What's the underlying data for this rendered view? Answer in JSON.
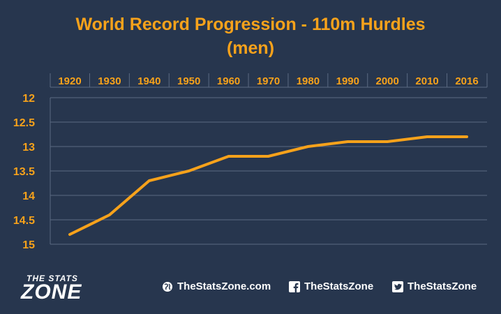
{
  "title_line1": "World Record Progression - 110m Hurdles",
  "title_line2": "(men)",
  "colors": {
    "background": "#27364e",
    "accent": "#f7a21b",
    "grid": "#5b6a82",
    "text": "#ffffff"
  },
  "chart_data": {
    "type": "line",
    "title": "World Record Progression - 110m Hurdles (men)",
    "x_axis_position": "top",
    "y_axis_reversed": true,
    "grid": true,
    "categories": [
      "1920",
      "1930",
      "1940",
      "1950",
      "1960",
      "1970",
      "1980",
      "1990",
      "2000",
      "2010",
      "2016"
    ],
    "series": [
      {
        "values": [
          14.8,
          14.4,
          13.7,
          13.5,
          13.2,
          13.2,
          13.0,
          12.9,
          12.9,
          12.8,
          12.8
        ]
      }
    ],
    "y_ticks": [
      "12",
      "12.5",
      "13",
      "13.5",
      "14",
      "14.5",
      "15"
    ],
    "ylim": [
      12,
      15
    ]
  },
  "footer": {
    "logo_top": "THE STATS",
    "logo_bottom": "ZONE",
    "website": "TheStatsZone.com",
    "facebook": "TheStatsZone",
    "twitter": "TheStatsZone",
    "website_icon": "globe-icon",
    "facebook_icon": "facebook-icon",
    "twitter_icon": "twitter-icon"
  }
}
